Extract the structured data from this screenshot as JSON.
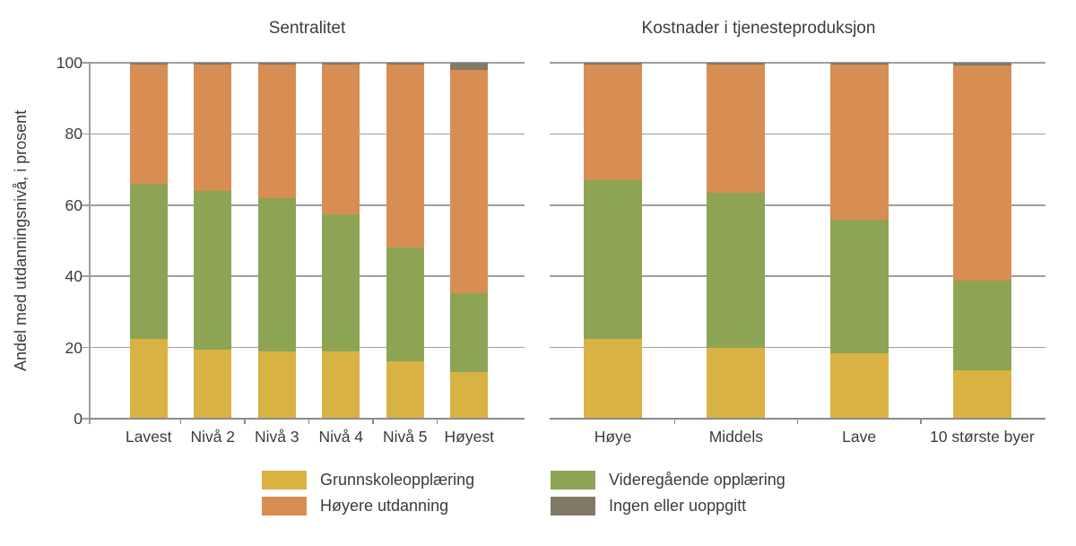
{
  "colors": {
    "grunnskole": "#d9b244",
    "videregaende": "#8da455",
    "hoyere": "#d88d53",
    "ingen": "#837a66",
    "gridline": "#9e9e9e",
    "zeroline": "#8a8a8a",
    "text": "#3c3c3c"
  },
  "chart_data": {
    "type": "bar",
    "stacked": true,
    "ylabel": "Andel med utdanningsnivå, i prosent",
    "ylim": [
      0,
      100
    ],
    "y_ticks": [
      0,
      20,
      40,
      60,
      80,
      100
    ],
    "grid": true,
    "legend_position": "bottom",
    "panels": [
      {
        "title": "Sentralitet",
        "categories": [
          "Lavest",
          "Nivå 2",
          "Nivå 3",
          "Nivå 4",
          "Nivå 5",
          "Høyest"
        ],
        "series": [
          {
            "name": "Grunnskoleopplæring",
            "color_key": "grunnskole",
            "values": [
              22.5,
              19.5,
              19,
              19,
              16,
              13
            ]
          },
          {
            "name": "Videregående opplæring",
            "color_key": "videregaende",
            "values": [
              43.5,
              44.5,
              43,
              38.5,
              32,
              22.3
            ]
          },
          {
            "name": "Høyere utdanning",
            "color_key": "hoyere",
            "values": [
              33.5,
              35.5,
              37.5,
              42,
              51.5,
              62.7
            ]
          },
          {
            "name": "Ingen eller uoppgitt",
            "color_key": "ingen",
            "values": [
              0.5,
              0.5,
              0.5,
              0.5,
              0.5,
              2
            ]
          }
        ]
      },
      {
        "title": "Kostnader i tjenesteproduksjon",
        "categories": [
          "Høye",
          "Middels",
          "Lave",
          "10 største byer"
        ],
        "series": [
          {
            "name": "Grunnskoleopplæring",
            "color_key": "grunnskole",
            "values": [
              22.5,
              20,
              18.5,
              13.5
            ]
          },
          {
            "name": "Videregående opplæring",
            "color_key": "videregaende",
            "values": [
              44.5,
              43.5,
              37.5,
              25.3
            ]
          },
          {
            "name": "Høyere utdanning",
            "color_key": "hoyere",
            "values": [
              32.5,
              36,
              43.5,
              60.5
            ]
          },
          {
            "name": "Ingen eller uoppgitt",
            "color_key": "ingen",
            "values": [
              0.5,
              0.5,
              0.5,
              0.7
            ]
          }
        ]
      }
    ],
    "legend": {
      "items": [
        {
          "label": "Grunnskoleopplæring",
          "color_key": "grunnskole"
        },
        {
          "label": "Videregående opplæring",
          "color_key": "videregaende"
        },
        {
          "label": "Høyere utdanning",
          "color_key": "hoyere"
        },
        {
          "label": "Ingen eller uoppgitt",
          "color_key": "ingen"
        }
      ]
    }
  }
}
